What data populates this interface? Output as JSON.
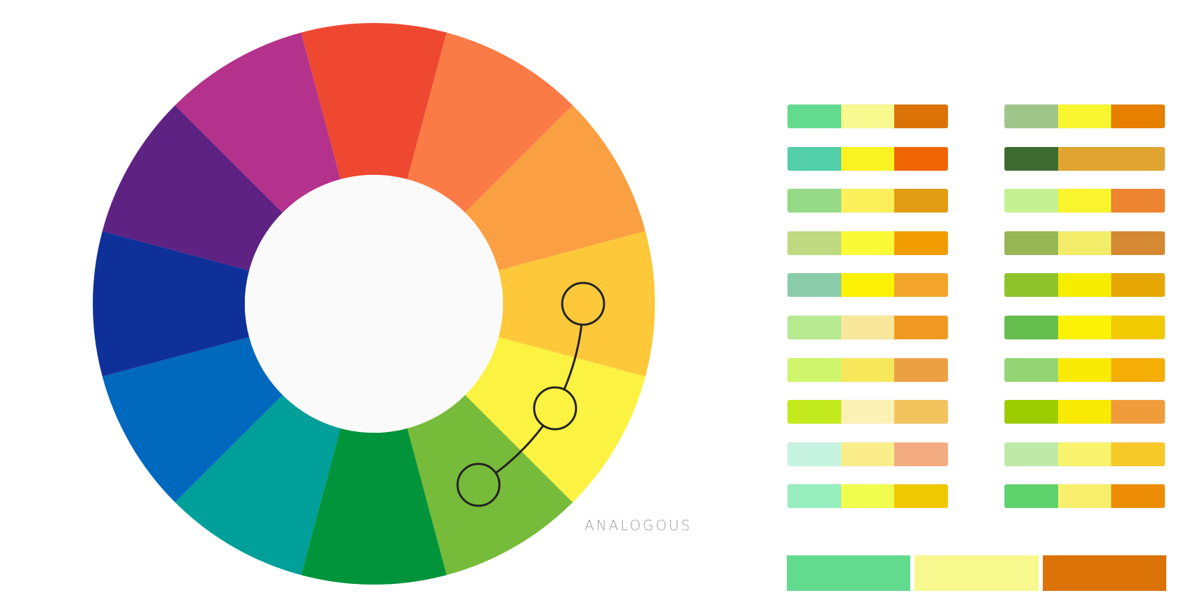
{
  "scheme": {
    "label": "ANALOGOUS"
  },
  "wheel": {
    "segments": [
      {
        "color": "#EF4830",
        "name": "red"
      },
      {
        "color": "#FB7B47",
        "name": "red-orange"
      },
      {
        "color": "#FAA042",
        "name": "orange"
      },
      {
        "color": "#FDC93A",
        "name": "yellow-orange"
      },
      {
        "color": "#FCF241",
        "name": "yellow"
      },
      {
        "color": "#77BB3A",
        "name": "yellow-green"
      },
      {
        "color": "#01943B",
        "name": "green"
      },
      {
        "color": "#009F9A",
        "name": "blue-green"
      },
      {
        "color": "#0068BD",
        "name": "blue"
      },
      {
        "color": "#103099",
        "name": "blue-violet"
      },
      {
        "color": "#5E2283",
        "name": "violet"
      },
      {
        "color": "#B4328C",
        "name": "red-violet"
      }
    ],
    "hub_color": "#FAFAFA",
    "markers": [
      {
        "segment": "yellow-orange",
        "fill": "#FDC93A"
      },
      {
        "segment": "yellow",
        "fill": "#FCF241"
      },
      {
        "segment": "yellow-green",
        "fill": "#77BB3A"
      }
    ]
  },
  "palettes": {
    "left": [
      {
        "swatches": [
          "#63DB8E",
          "#F7F88E",
          "#DB7208"
        ]
      },
      {
        "swatches": [
          "#52CFA9",
          "#F9F421",
          "#EF6403"
        ]
      },
      {
        "swatches": [
          "#96DA87",
          "#FBF05A",
          "#E29C13"
        ]
      },
      {
        "swatches": [
          "#C0DA82",
          "#FBFA37",
          "#F29C03"
        ]
      },
      {
        "swatches": [
          "#8ACCAA",
          "#FDF205",
          "#F3A52B"
        ]
      },
      {
        "swatches": [
          "#B6E990",
          "#F8E79B",
          "#F19A23"
        ]
      },
      {
        "swatches": [
          "#CFF56D",
          "#F7E75B",
          "#EBA142"
        ]
      },
      {
        "swatches": [
          "#C3EA1D",
          "#FBF1B5",
          "#F3C35E"
        ]
      },
      {
        "swatches": [
          "#C6F4E0",
          "#FBEE8A",
          "#F3AC82"
        ]
      },
      {
        "swatches": [
          "#97EEBF",
          "#F1FE4F",
          "#F0C801"
        ]
      }
    ],
    "right": [
      {
        "swatches": [
          "#A0C58A",
          "#F9F630",
          "#E77F01"
        ]
      },
      {
        "swatches": [
          "#3D6B2F",
          "#E0A430",
          "#E0A430"
        ]
      },
      {
        "swatches": [
          "#C6F193",
          "#F9F42D",
          "#EE8530"
        ]
      },
      {
        "swatches": [
          "#98B653",
          "#F2EC68",
          "#D48932"
        ]
      },
      {
        "swatches": [
          "#90C32A",
          "#F6EE01",
          "#E6A704"
        ]
      },
      {
        "swatches": [
          "#65BE4E",
          "#FCF206",
          "#F2CA01"
        ]
      },
      {
        "swatches": [
          "#94D474",
          "#FAEB06",
          "#F5AE05"
        ]
      },
      {
        "swatches": [
          "#9DCD01",
          "#F8EA03",
          "#F09C3B"
        ]
      },
      {
        "swatches": [
          "#BEE9A6",
          "#F9F36D",
          "#F6C928"
        ]
      },
      {
        "swatches": [
          "#5ED26D",
          "#F8EF6D",
          "#ED8D07"
        ]
      }
    ]
  },
  "selected_palette": {
    "swatches": [
      "#63DB8E",
      "#F7F88E",
      "#DB7208"
    ]
  }
}
